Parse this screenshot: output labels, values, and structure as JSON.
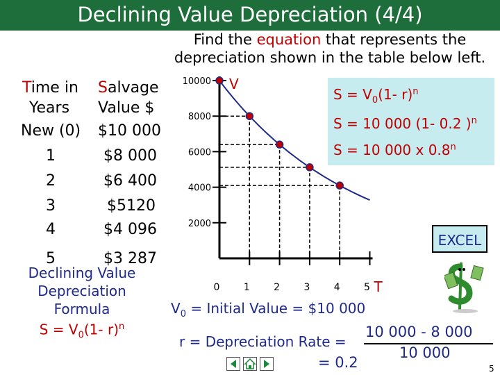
{
  "title": "Declining Value Depreciation (4/4)",
  "subtitle": {
    "line1_before": "Find the ",
    "line1_highlight": "equation",
    "line1_after": " that represents the",
    "line2": "depreciation shown in the table below left."
  },
  "table": {
    "header_col1_line1": "Time in",
    "header_col1_line2": "Years",
    "header_col2_line1": "Salvage",
    "header_col2_line2": "Value $",
    "rows": [
      {
        "time": "New (0)",
        "value": "$10 000"
      },
      {
        "time": "1",
        "value": "$8 000"
      },
      {
        "time": "2",
        "value": "$6 400"
      },
      {
        "time": "3",
        "value": "$5120"
      },
      {
        "time": "4",
        "value": "$4 096"
      },
      {
        "time": "5",
        "value": "$3 287"
      }
    ]
  },
  "formulas": {
    "f1": "S = V",
    "f1_sub": "0",
    "f1_rest": "(1- r)",
    "f1_sup": "n",
    "f2": "S = 10 000 (1- 0.2 )",
    "f2_sup": "n",
    "f3": "S = 10 000 x 0.8",
    "f3_sup": "n"
  },
  "formula_block": {
    "line1": "Declining Value",
    "line2": "Depreciation",
    "line3": "Formula",
    "line4_a": "S = V",
    "line4_sub": "0",
    "line4_b": "(1- r)",
    "line4_sup": "n"
  },
  "excel_button": "EXCEL",
  "bottom": {
    "v0_a": "V",
    "v0_sub": "0",
    "v0_b": " = Initial Value  = $10 000",
    "rate_label": "r = Depreciation Rate =",
    "numerator": "10 000 - 8 000",
    "denominator": "10 000",
    "result": "= 0.2"
  },
  "slide_number": "5",
  "colors": {
    "title_bg": "#1d6e3a",
    "accent_red": "#c00000",
    "navy": "#1f2a8a",
    "formula_bg": "#c7ecf0",
    "curve": "#1f2a8a"
  },
  "chart_data": {
    "type": "line",
    "y_axis_label": "V",
    "x_axis_label": "T",
    "y_ticks": [
      "10000",
      "8000",
      "6000",
      "4000",
      "2000"
    ],
    "x_ticks": [
      "0",
      "1",
      "2",
      "3",
      "4",
      "5"
    ],
    "ylim": [
      0,
      10000
    ],
    "xlim": [
      0,
      5
    ],
    "points": [
      {
        "x": 0,
        "y": 10000
      },
      {
        "x": 1,
        "y": 8000
      },
      {
        "x": 2,
        "y": 6400
      },
      {
        "x": 3,
        "y": 5120
      },
      {
        "x": 4,
        "y": 4096
      }
    ],
    "curve_end": {
      "x": 5,
      "y": 3287
    }
  }
}
